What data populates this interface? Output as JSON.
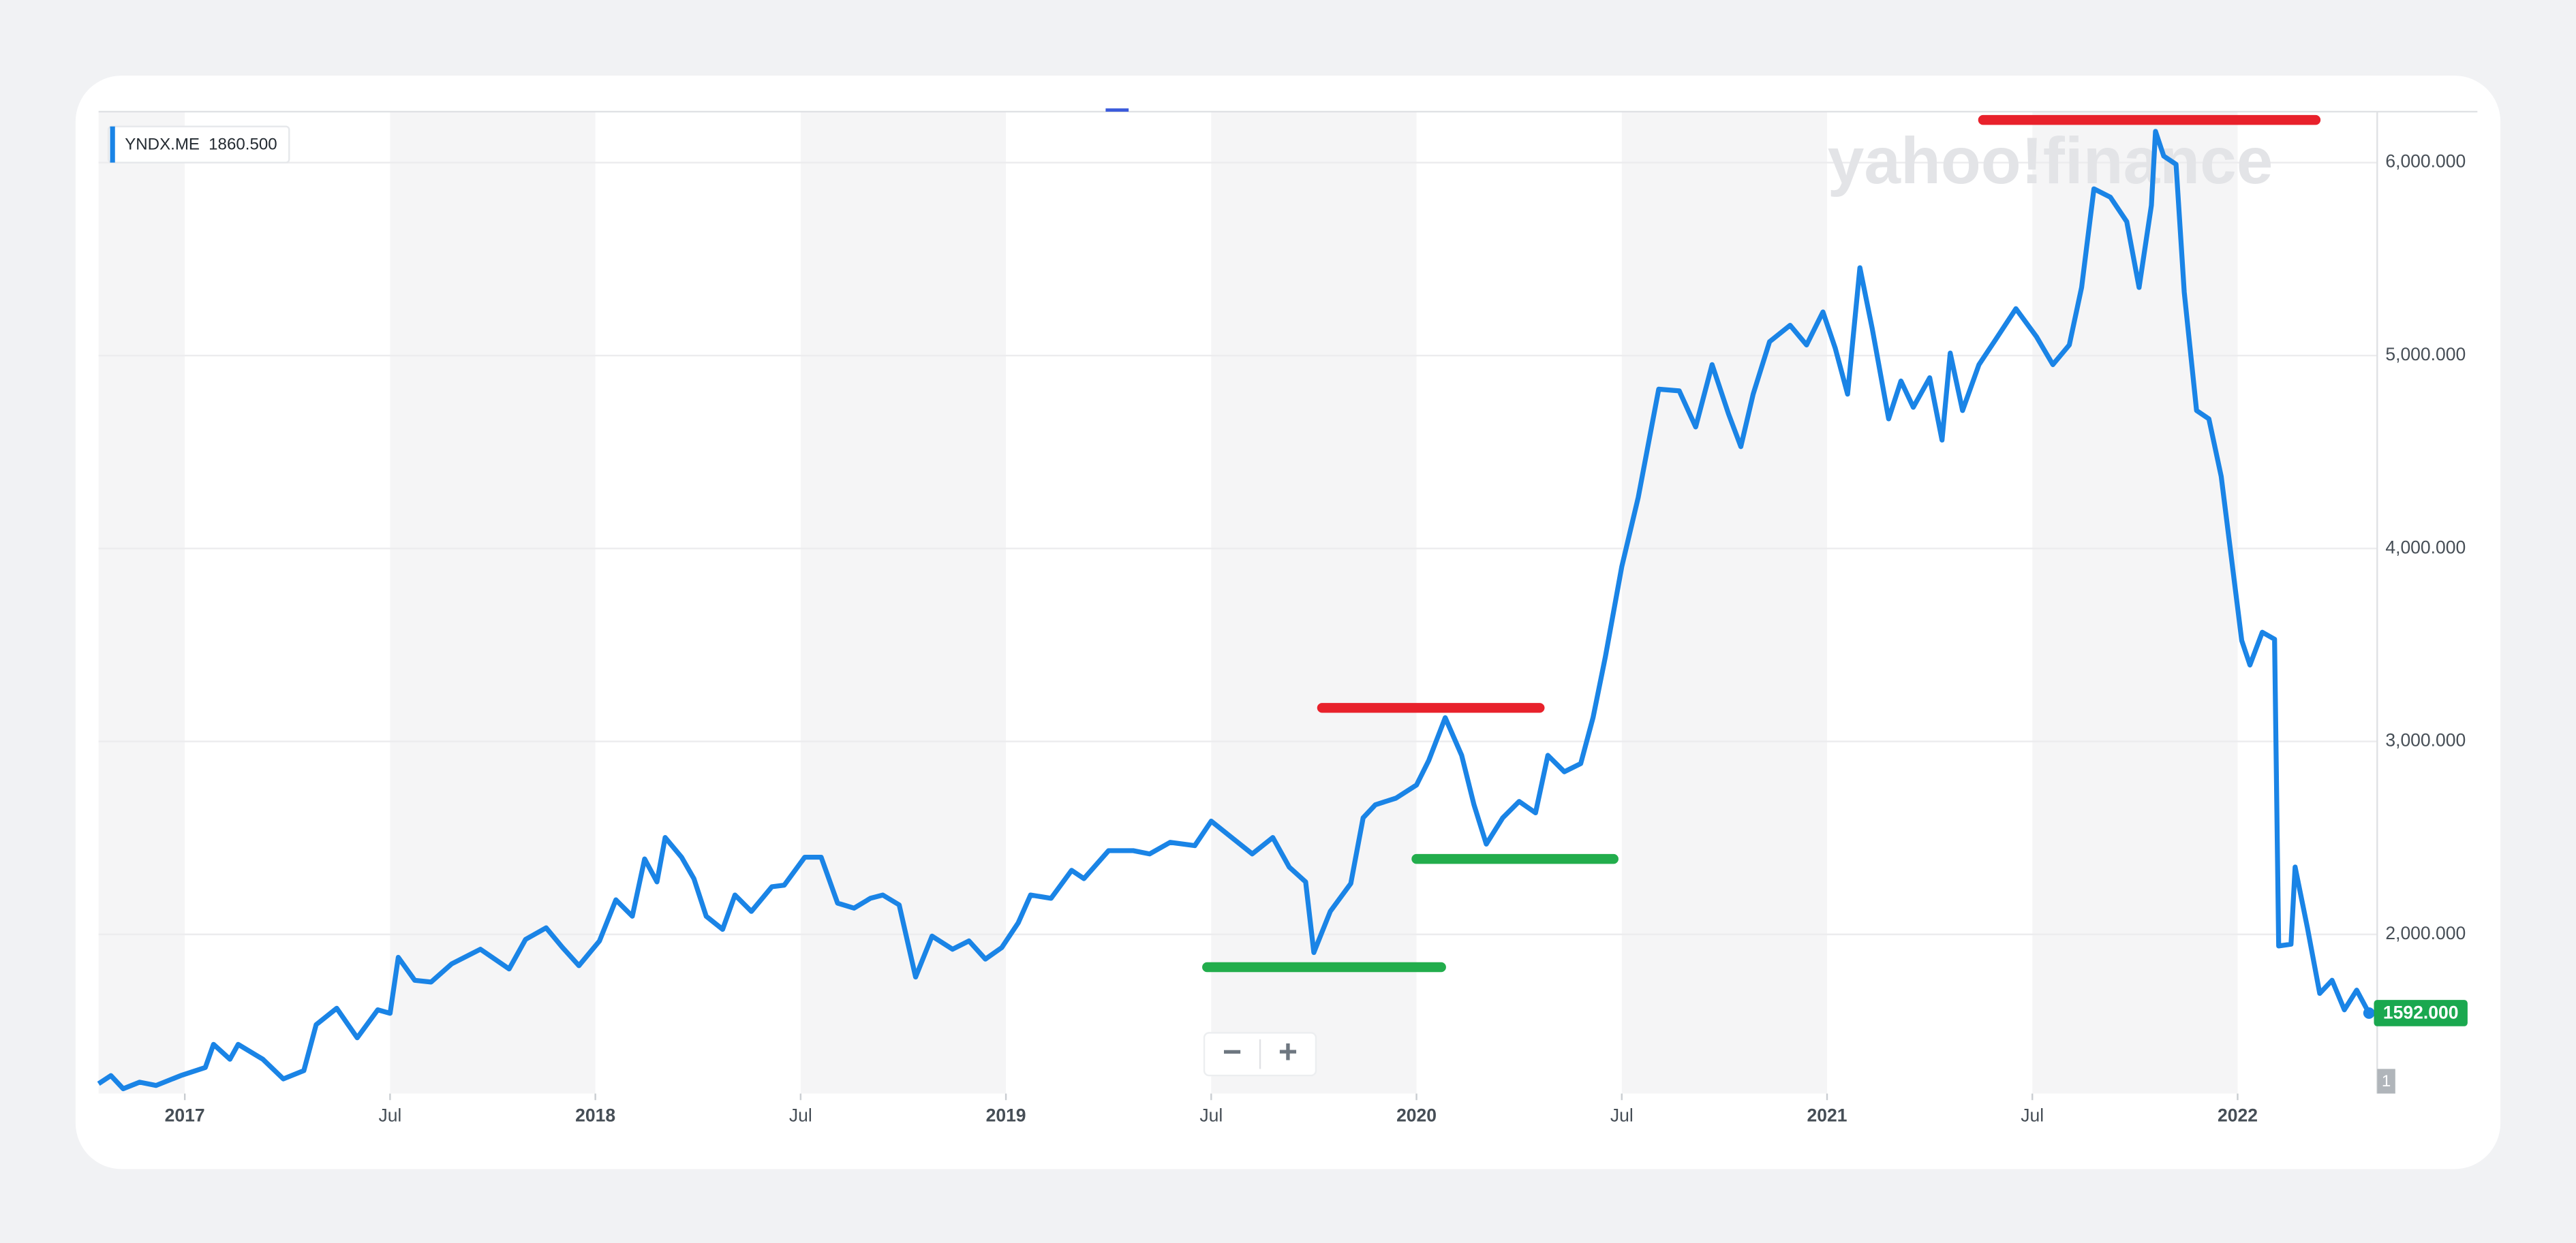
{
  "chart_data": {
    "type": "line",
    "watermark": "yahoo!finance",
    "legend_value": "1860.500",
    "price_tag": "1592.000",
    "volume_tag": "1",
    "zoom_out": "−",
    "zoom_in": "+",
    "x": [
      2016.79,
      2016.82,
      2016.85,
      2016.89,
      2016.93,
      2016.99,
      2017.05,
      2017.07,
      2017.11,
      2017.13,
      2017.19,
      2017.24,
      2017.29,
      2017.32,
      2017.37,
      2017.42,
      2017.47,
      2017.5,
      2017.52,
      2017.56,
      2017.6,
      2017.65,
      2017.72,
      2017.79,
      2017.83,
      2017.88,
      2017.92,
      2017.96,
      2018.01,
      2018.05,
      2018.09,
      2018.12,
      2018.15,
      2018.17,
      2018.21,
      2018.24,
      2018.27,
      2018.31,
      2018.34,
      2018.38,
      2018.43,
      2018.46,
      2018.51,
      2018.55,
      2018.59,
      2018.63,
      2018.67,
      2018.7,
      2018.74,
      2018.78,
      2018.82,
      2018.87,
      2018.91,
      2018.95,
      2018.99,
      2019.03,
      2019.06,
      2019.11,
      2019.16,
      2019.19,
      2019.25,
      2019.31,
      2019.35,
      2019.4,
      2019.46,
      2019.5,
      2019.55,
      2019.6,
      2019.65,
      2019.69,
      2019.73,
      2019.75,
      2019.79,
      2019.84,
      2019.87,
      2019.9,
      2019.95,
      2020.0,
      2020.03,
      2020.07,
      2020.11,
      2020.14,
      2020.17,
      2020.21,
      2020.25,
      2020.29,
      2020.32,
      2020.36,
      2020.4,
      2020.43,
      2020.46,
      2020.5,
      2020.54,
      2020.59,
      2020.64,
      2020.68,
      2020.72,
      2020.76,
      2020.79,
      2020.82,
      2020.86,
      2020.91,
      2020.95,
      2020.99,
      2021.02,
      2021.05,
      2021.08,
      2021.11,
      2021.15,
      2021.18,
      2021.21,
      2021.25,
      2021.28,
      2021.3,
      2021.33,
      2021.37,
      2021.41,
      2021.46,
      2021.51,
      2021.55,
      2021.59,
      2021.62,
      2021.65,
      2021.69,
      2021.73,
      2021.76,
      2021.79,
      2021.8,
      2021.82,
      2021.85,
      2021.87,
      2021.9,
      2021.93,
      2021.96,
      2021.98,
      2022.01,
      2022.03,
      2022.06,
      2022.09,
      2022.1,
      2022.13,
      2022.14,
      2022.17,
      2022.2,
      2022.23,
      2022.26,
      2022.29,
      2022.32
    ],
    "series": [
      {
        "name": "YNDX.ME",
        "color": "#1a84e6",
        "values": [
          1226,
          1268,
          1200,
          1234,
          1217,
          1268,
          1310,
          1430,
          1353,
          1430,
          1353,
          1251,
          1294,
          1532,
          1617,
          1464,
          1609,
          1591,
          1881,
          1762,
          1753,
          1847,
          1923,
          1821,
          1974,
          2034,
          1932,
          1838,
          1966,
          2179,
          2094,
          2391,
          2272,
          2502,
          2400,
          2289,
          2094,
          2026,
          2204,
          2119,
          2247,
          2255,
          2400,
          2400,
          2162,
          2136,
          2187,
          2204,
          2153,
          1779,
          1991,
          1923,
          1966,
          1872,
          1932,
          2060,
          2204,
          2187,
          2332,
          2289,
          2434,
          2434,
          2417,
          2477,
          2460,
          2587,
          2502,
          2417,
          2502,
          2349,
          2272,
          1906,
          2119,
          2264,
          2604,
          2672,
          2706,
          2774,
          2902,
          3123,
          2928,
          2672,
          2468,
          2604,
          2689,
          2630,
          2928,
          2843,
          2885,
          3123,
          3438,
          3906,
          4264,
          4826,
          4817,
          4630,
          4953,
          4698,
          4528,
          4800,
          5072,
          5157,
          5055,
          5226,
          5038,
          4800,
          5455,
          5140,
          4672,
          4868,
          4732,
          4885,
          4562,
          5013,
          4715,
          4953,
          5081,
          5243,
          5098,
          4953,
          5055,
          5353,
          5864,
          5821,
          5694,
          5353,
          5779,
          6162,
          6034,
          5991,
          5328,
          4715,
          4672,
          4374,
          4034,
          3523,
          3396,
          3566,
          3530,
          1940,
          1949,
          2349,
          2034,
          1694,
          1762,
          1609,
          1711,
          1592
        ]
      }
    ],
    "hlines": [
      {
        "color": "#e8212b",
        "value": 3174,
        "x": [
          2019.77,
          2020.3
        ]
      },
      {
        "color": "#22ad4c",
        "value": 1830,
        "x": [
          2019.49,
          2020.06
        ]
      },
      {
        "color": "#22ad4c",
        "value": 2391,
        "x": [
          2020.0,
          2020.48
        ]
      },
      {
        "color": "#e8212b",
        "value": 6221,
        "x": [
          2021.38,
          2022.19
        ]
      }
    ],
    "xlim": [
      2016.79,
      2022.34
    ],
    "xticks": [
      2017,
      {
        "value": 2017.5,
        "label": "Jul"
      },
      2018,
      {
        "value": 2018.5,
        "label": "Jul"
      },
      2019,
      {
        "value": 2019.5,
        "label": "Jul"
      },
      2020,
      {
        "value": 2020.5,
        "label": "Jul"
      },
      2021,
      {
        "value": 2021.5,
        "label": "Jul"
      },
      2022
    ],
    "ylim": [
      1175,
      6264
    ],
    "yticks": [
      {
        "value": 2000,
        "label": "2,000.000"
      },
      {
        "value": 3000,
        "label": "3,000.000"
      },
      {
        "value": 4000,
        "label": "4,000.000"
      },
      {
        "value": 5000,
        "label": "5,000.000"
      },
      {
        "value": 6000,
        "label": "6,000.000"
      }
    ],
    "grid": true
  }
}
